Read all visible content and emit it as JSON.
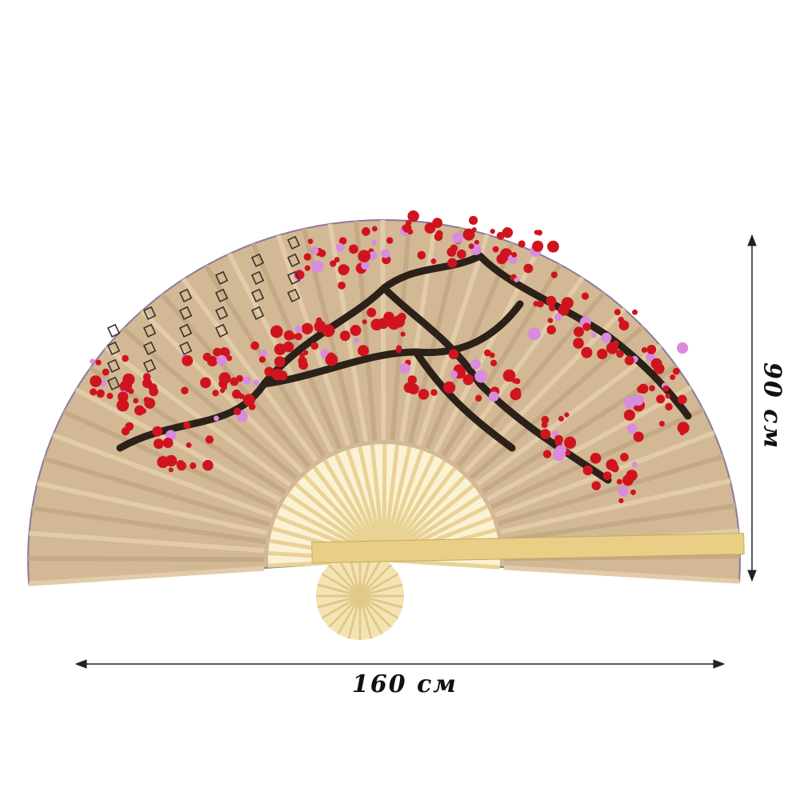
{
  "product": {
    "type": "wall fan",
    "colors": {
      "paper": "#d2b894",
      "blossom": "#d0141e",
      "blossom_pink": "#d98be0",
      "branch": "#2b2118",
      "bamboo": "#efdba0",
      "dimension_line": "#222222"
    }
  },
  "dimensions": {
    "width_label": "160 см",
    "height_label": "90 см"
  }
}
